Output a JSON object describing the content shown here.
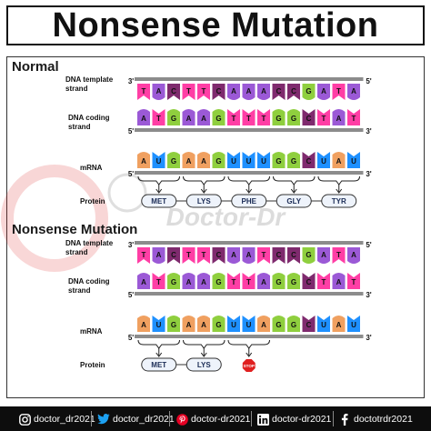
{
  "title": "Nonsense Mutation",
  "colors": {
    "A": "#9b59d6",
    "T": "#ff3ea5",
    "C": "#7f2a6e",
    "G": "#8fcf3e",
    "U": "#1e90ff",
    "A_m": "#f0a060",
    "G_m": "#8fcf3e",
    "U_m": "#1e90ff",
    "backbone": "#8c8c8c",
    "stop": "#e02020"
  },
  "normal": {
    "label": "Normal",
    "template_label": "DNA template strand",
    "template_label_lines": [
      "DNA template",
      "strand"
    ],
    "template_left": "3'",
    "template_right": "5'",
    "template_bases": [
      "T",
      "A",
      "C",
      "T",
      "T",
      "C",
      "A",
      "A",
      "A",
      "C",
      "C",
      "G",
      "A",
      "T",
      "A"
    ],
    "coding_label_lines": [
      "DNA coding",
      "strand"
    ],
    "coding_left": "5'",
    "coding_right": "3'",
    "coding_bases": [
      "A",
      "T",
      "G",
      "A",
      "A",
      "G",
      "T",
      "T",
      "T",
      "G",
      "G",
      "C",
      "T",
      "A",
      "T"
    ],
    "mrna_label": "mRNA",
    "mrna_left": "5'",
    "mrna_right": "3'",
    "mrna_bases": [
      "A",
      "U",
      "G",
      "A",
      "A",
      "G",
      "U",
      "U",
      "U",
      "G",
      "G",
      "C",
      "U",
      "A",
      "U"
    ],
    "protein_label": "Protein",
    "amino_acids": [
      "MET",
      "LYS",
      "PHE",
      "GLY",
      "TYR"
    ]
  },
  "mutant": {
    "label": "Nonsense Mutation",
    "template_label_lines": [
      "DNA template",
      "strand"
    ],
    "template_left": "3'",
    "template_right": "5'",
    "template_bases": [
      "T",
      "A",
      "C",
      "T",
      "T",
      "C",
      "A",
      "A",
      "T",
      "C",
      "C",
      "G",
      "A",
      "T",
      "A"
    ],
    "coding_label_lines": [
      "DNA coding",
      "strand"
    ],
    "coding_left": "5'",
    "coding_right": "3'",
    "coding_bases": [
      "A",
      "T",
      "G",
      "A",
      "A",
      "G",
      "T",
      "T",
      "A",
      "G",
      "G",
      "C",
      "T",
      "A",
      "T"
    ],
    "mrna_label": "mRNA",
    "mrna_left": "5'",
    "mrna_right": "3'",
    "mrna_bases": [
      "A",
      "U",
      "G",
      "A",
      "A",
      "G",
      "U",
      "U",
      "A",
      "G",
      "G",
      "C",
      "U",
      "A",
      "U"
    ],
    "protein_label": "Protein",
    "amino_acids": [
      "MET",
      "LYS"
    ],
    "stop_label": "STOP"
  },
  "watermark": "Doctor-Dr",
  "footer": [
    {
      "icon": "instagram-icon",
      "handle": "doctor_dr2021"
    },
    {
      "icon": "twitter-icon",
      "handle": "doctor_dr2021"
    },
    {
      "icon": "pinterest-icon",
      "handle": "doctor-dr2021"
    },
    {
      "icon": "linkedin-icon",
      "handle": "doctor-dr2021"
    },
    {
      "icon": "facebook-icon",
      "handle": "doctotrdr2021"
    }
  ]
}
